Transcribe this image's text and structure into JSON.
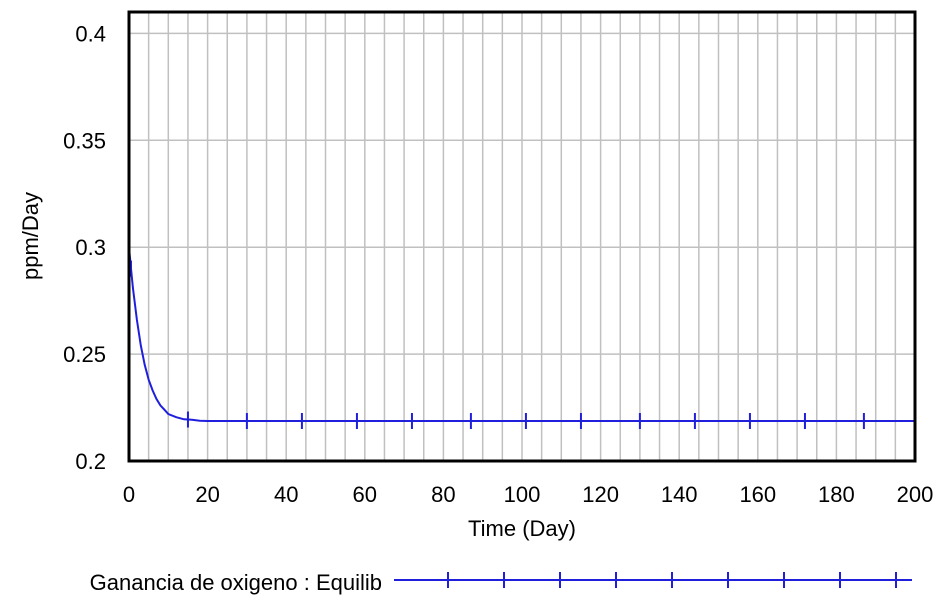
{
  "chart_data": {
    "type": "line",
    "xlabel": "Time (Day)",
    "ylabel": "ppm/Day",
    "xlim": [
      0,
      200
    ],
    "ylim": [
      0.2,
      0.41
    ],
    "x_ticks": [
      0,
      20,
      40,
      60,
      80,
      100,
      120,
      140,
      160,
      180,
      200
    ],
    "y_ticks": [
      0.2,
      0.25,
      0.3,
      0.35,
      0.4
    ],
    "y_tick_labels": [
      "0.2",
      "0.25",
      "0.3",
      "0.35",
      "0.4"
    ],
    "x_tick_labels": [
      "0",
      "20",
      "40",
      "60",
      "80",
      "100",
      "120",
      "140",
      "160",
      "180",
      "200"
    ],
    "grid": true,
    "legend_position": "bottom",
    "series": [
      {
        "name": "Ganancia de oxigeno : Equilib",
        "color": "#1f1fdc",
        "marker": "tick",
        "x": [
          0,
          0.5,
          1,
          2,
          3,
          4,
          5,
          6,
          7,
          8,
          9,
          10,
          12,
          14,
          16,
          18,
          20,
          30,
          40,
          60,
          80,
          100,
          120,
          140,
          160,
          180,
          200
        ],
        "y": [
          0.3,
          0.29,
          0.281,
          0.266,
          0.254,
          0.245,
          0.238,
          0.233,
          0.229,
          0.226,
          0.224,
          0.222,
          0.2205,
          0.2195,
          0.2193,
          0.2188,
          0.2187,
          0.2187,
          0.2187,
          0.2187,
          0.2187,
          0.2187,
          0.2187,
          0.2187,
          0.2187,
          0.2187,
          0.2187
        ],
        "marker_x": [
          0.5,
          15,
          30,
          44,
          58,
          72,
          87,
          101,
          115,
          130,
          144,
          158,
          172,
          187
        ]
      }
    ]
  }
}
